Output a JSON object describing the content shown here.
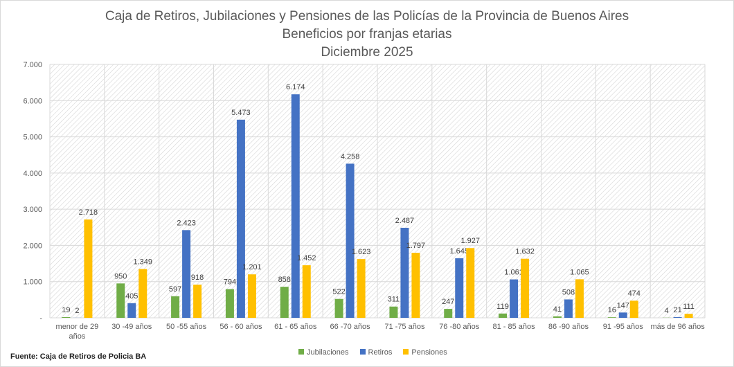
{
  "chart_data": {
    "type": "bar",
    "title": [
      "Caja de Retiros, Jubilaciones y Pensiones de las Policías de la Provincia de Buenos Aires",
      "Beneficios por franjas etarias",
      "Diciembre 2025"
    ],
    "categories": [
      "menor de 29 años",
      "30 -49 años",
      "50 -55 años",
      "56 - 60 años",
      "61 - 65 años",
      "66 -70 años",
      "71 -75 años",
      "76 -80 años",
      "81 - 85 años",
      "86 -90 años",
      "91 -95 años",
      "más de 96 años"
    ],
    "series": [
      {
        "name": "Jubilaciones",
        "color": "#70ad47",
        "values": [
          19,
          950,
          597,
          794,
          858,
          522,
          311,
          247,
          119,
          41,
          16,
          4
        ],
        "labels": [
          "19",
          "950",
          "597",
          "794",
          "858",
          "522",
          "311",
          "247",
          "119",
          "41",
          "16",
          "4"
        ]
      },
      {
        "name": "Retiros",
        "color": "#4472c4",
        "values": [
          2,
          405,
          2423,
          5473,
          6174,
          4258,
          2487,
          1645,
          1061,
          508,
          147,
          21
        ],
        "labels": [
          "2",
          "405",
          "2.423",
          "5.473",
          "6.174",
          "4.258",
          "2.487",
          "1.645",
          "1.061",
          "508",
          "147",
          "21"
        ]
      },
      {
        "name": "Pensiones",
        "color": "#ffc000",
        "values": [
          2718,
          1349,
          918,
          1201,
          1452,
          1623,
          1797,
          1927,
          1632,
          1065,
          474,
          111
        ],
        "labels": [
          "2.718",
          "1.349",
          "918",
          "1.201",
          "1.452",
          "1.623",
          "1.797",
          "1.927",
          "1.632",
          "1.065",
          "474",
          "111"
        ]
      }
    ],
    "yticks": [
      "-",
      "1.000",
      "2.000",
      "3.000",
      "4.000",
      "5.000",
      "6.000",
      "7.000"
    ],
    "ylim": [
      0,
      7000
    ],
    "grid": true,
    "legend": "bottom"
  },
  "source": "Fuente: Caja de Retiros de Policia BA"
}
